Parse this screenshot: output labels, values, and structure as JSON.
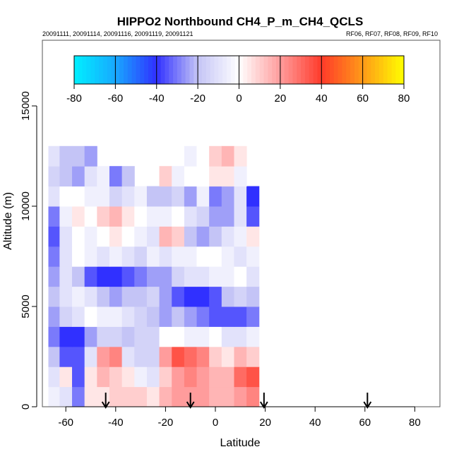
{
  "chart_data": {
    "type": "heatmap",
    "title": "HIPPO2 Northbound CH4_P_m_CH4_QCLS",
    "subtitle_left": "20091111, 20091114, 20091116, 20091119, 20091121",
    "subtitle_right": "RF06, RF07, RF08, RF09, RF10",
    "xlabel": "Latitude",
    "ylabel": "Altitude (m)",
    "xlim": [
      -70,
      90
    ],
    "ylim": [
      0,
      15000
    ],
    "xticks": [
      -60,
      -40,
      -20,
      0,
      20,
      40,
      60,
      80
    ],
    "yticks": [
      0,
      5000,
      10000,
      15000
    ],
    "colorbar": {
      "range": [
        -80,
        80
      ],
      "ticks": [
        -80,
        -60,
        -40,
        -20,
        0,
        20,
        40,
        60,
        80
      ],
      "stops": [
        {
          "v": -80,
          "c": "#00f0ff"
        },
        {
          "v": -60,
          "c": "#18a8ff"
        },
        {
          "v": -40,
          "c": "#3030ff"
        },
        {
          "v": -20,
          "c": "#c4c4f6"
        },
        {
          "v": 0,
          "c": "#ffffff"
        },
        {
          "v": 20,
          "c": "#ff9c9c"
        },
        {
          "v": 40,
          "c": "#ff3a2a"
        },
        {
          "v": 60,
          "c": "#ff9a18"
        },
        {
          "v": 80,
          "c": "#ffff00"
        }
      ]
    },
    "lat_bins": [
      -65,
      -60,
      -55,
      -50,
      -45,
      -40,
      -35,
      -30,
      -25,
      -20,
      -15,
      -10,
      -5,
      0,
      5,
      10,
      15,
      20
    ],
    "lat_bin_width": 5,
    "lat_extent": [
      -67,
      19.5
    ],
    "alt_bins": [
      500,
      1500,
      2500,
      3500,
      4500,
      5500,
      6500,
      7500,
      8500,
      9500,
      10500,
      11500,
      12500
    ],
    "alt_bin_width": 1000,
    "values": [
      [
        -5,
        -10,
        -30,
        5,
        5,
        10,
        10,
        10,
        5,
        15,
        20,
        20,
        20,
        15,
        15,
        20,
        25,
        null
      ],
      [
        -10,
        5,
        -35,
        5,
        15,
        10,
        5,
        -5,
        -10,
        10,
        20,
        25,
        20,
        15,
        15,
        30,
        35,
        null
      ],
      [
        -20,
        -35,
        -35,
        -10,
        20,
        25,
        -10,
        -15,
        -15,
        20,
        35,
        30,
        25,
        10,
        5,
        15,
        10,
        null
      ],
      [
        -30,
        -40,
        -40,
        -25,
        -15,
        -15,
        -20,
        -15,
        -15,
        0,
        0,
        -5,
        -5,
        0,
        -10,
        -10,
        -5,
        null
      ],
      [
        -25,
        -15,
        -10,
        0,
        -5,
        -5,
        -10,
        -15,
        -20,
        -25,
        -20,
        -25,
        -30,
        -35,
        -35,
        -35,
        -30,
        null
      ],
      [
        -20,
        -10,
        -5,
        -10,
        -20,
        -25,
        -20,
        -20,
        -15,
        -25,
        -35,
        -40,
        -40,
        -35,
        -20,
        -15,
        -20,
        null
      ],
      [
        -25,
        -10,
        -20,
        -35,
        -40,
        -40,
        -35,
        -30,
        -25,
        -25,
        -15,
        -10,
        -10,
        -5,
        -5,
        0,
        -10,
        null
      ],
      [
        -30,
        -10,
        0,
        -5,
        -10,
        -5,
        -10,
        -15,
        -5,
        -10,
        -5,
        -5,
        0,
        0,
        -5,
        -10,
        -5,
        null
      ],
      [
        -35,
        -10,
        0,
        -5,
        0,
        5,
        0,
        -5,
        -10,
        15,
        10,
        -20,
        -25,
        -20,
        -10,
        -5,
        5,
        null
      ],
      [
        -30,
        -5,
        5,
        0,
        10,
        15,
        5,
        0,
        -5,
        -5,
        0,
        -10,
        -15,
        -25,
        -25,
        -10,
        -35,
        null
      ],
      [
        -10,
        0,
        0,
        -5,
        -5,
        -15,
        -10,
        -5,
        -20,
        -20,
        -15,
        -25,
        -5,
        -30,
        -25,
        -10,
        -40,
        null
      ],
      [
        -15,
        -20,
        -25,
        -10,
        -5,
        -30,
        -20,
        null,
        null,
        10,
        -5,
        0,
        0,
        5,
        5,
        -5,
        null,
        null
      ],
      [
        -10,
        -20,
        -20,
        -25,
        null,
        null,
        null,
        null,
        null,
        null,
        null,
        -5,
        0,
        10,
        15,
        5,
        null,
        null
      ]
    ],
    "flight_arrows_lat": [
      -44,
      -10,
      19.5,
      61
    ]
  }
}
